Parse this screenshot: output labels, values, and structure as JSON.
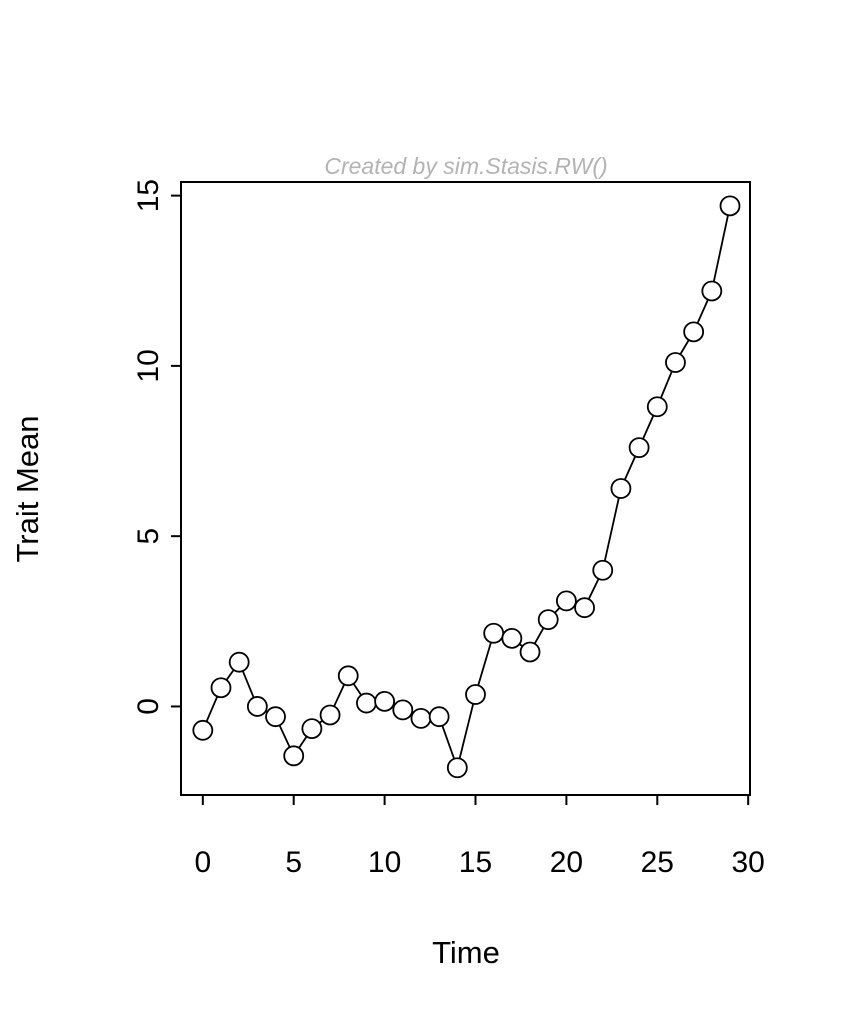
{
  "figure": {
    "title": "Created by sim.Stasis.RW()",
    "xlabel": "Time",
    "ylabel": "Trait Mean"
  },
  "chart_data": {
    "type": "line",
    "marker": "open-circle",
    "title": "Created by sim.Stasis.RW()",
    "xlabel": "Time",
    "ylabel": "Trait Mean",
    "x": [
      0,
      1,
      2,
      3,
      4,
      5,
      6,
      7,
      8,
      9,
      10,
      11,
      12,
      13,
      14,
      15,
      16,
      17,
      18,
      19,
      20,
      21,
      22,
      23,
      24,
      25,
      26,
      27,
      28,
      29
    ],
    "y": [
      -0.7,
      0.55,
      1.3,
      0.0,
      -0.3,
      -1.45,
      -0.65,
      -0.25,
      0.9,
      0.1,
      0.15,
      -0.1,
      -0.35,
      -0.3,
      -1.8,
      0.35,
      2.15,
      2.0,
      1.6,
      2.55,
      3.1,
      2.9,
      4.0,
      6.4,
      7.6,
      8.8,
      10.1,
      11.0,
      12.2,
      14.7
    ],
    "xlim": [
      -1.2,
      30.1
    ],
    "ylim": [
      -2.6,
      15.4
    ],
    "xticks": [
      0,
      5,
      10,
      15,
      20,
      25,
      30
    ],
    "yticks": [
      0,
      5,
      10,
      15
    ],
    "grid": false,
    "legend": null,
    "line_color": "#000000",
    "marker_fill": "#ffffff",
    "marker_stroke": "#000000",
    "title_color": "#b3b3b3"
  }
}
